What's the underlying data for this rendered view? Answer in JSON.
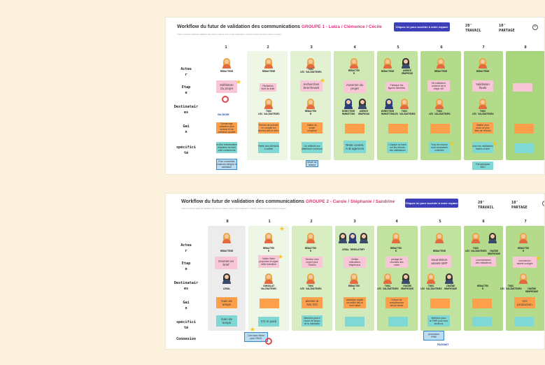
{
  "boards": [
    {
      "title": "Workflow du futur de validation des communications",
      "group": "GROUPE 1 - Luiza / Clémence / Cécile",
      "subtitle": "Créez un process global de validation des comms. Laissez court à votre imagination, n'hésitez surtout pas à les mettre en images !",
      "cta": "Cliquez ici pour accéder à votre espace",
      "meta1": "20'\nTRAVAIL",
      "meta2": "10'\nPARTAGE",
      "columns": [
        "1",
        "2",
        "3",
        "4",
        "5",
        "6",
        "7",
        "8"
      ],
      "rows": [
        "Acteu\nr",
        "Etap\ne",
        "Destinatair\nes",
        "Gai\nn",
        "spécifici\nté"
      ],
      "roles": [
        "REDACTEUR",
        "REDACTEUR",
        "TOUS\nLES VALIDATEURS",
        "REDACTEU\nR",
        "REDACTEUR",
        "AGENCE\nGRAPHIQU",
        "REDACTEUR",
        "REDACTEUR"
      ],
      "steps": [
        "Définition\ndu projet",
        "Rédaction\nécrit du brief",
        "recherches\nbenchmark",
        "Avancée du\nprojet",
        "Fabrique les\nfigures identifiés",
        "Ne validateur\ncontient de la\nétape 4/5",
        "Validation\nfinale"
      ],
      "dest_roles": [
        "VALIDCOM",
        "TOUS\nLES VALIDATEURS",
        "REDACTEU\nR",
        "DIRECTEUR\nMARKETING",
        "AGENCE\nGRAPHIQU",
        "DIRECTEUR\nMARKETING",
        "TOUS\nLES VALIDATEURS",
        "TOUS\nLES VALIDATEURS",
        "TOUS\nLES VALIDATEURS"
      ],
      "gains": [
        "Démarrage\nvalidation plus\nsereine et de\nmeilleure qualité",
        "Permet de prendre\nen compte les\nattentes dès le début",
        "Valeur du\nprojet\ncomprise",
        "",
        "",
        "",
        "Valider pour\nnous ne plus\nfaire de retours",
        ""
      ],
      "specs": [
        "Peut-être éventuellement\nrédaction du brief\ncôté commercial",
        "Partie des éléments\nà valider",
        "On réfléchit sur\nplateforme commune",
        "Tests comes,\nA-B agences",
        "L'équipe se base\nsur les retours\ndes validateurs",
        "Tous les retours\nsont centralisés\ncollectés",
        "Avec les validations\nfaciles à faire",
        ""
      ],
      "extras": [
        "Pour consolider\nplusieurs intégrer la\nvalidation",
        "Mode de\nretours",
        "Fait quelques MAJ"
      ]
    },
    {
      "title": "Workflow du futur de validation des communications",
      "group": "GROUPE 2 - Carole / Stéphanie / Sandrine",
      "subtitle": "Créez un process global de validation des comms. Laissez court à votre imagination, n'hésitez surtout pas à les mettre en images !",
      "cta": "Cliquez ici pour accéder à votre espace",
      "meta1": "20'\nTRAVAIL",
      "meta2": "10'\nPARTAGE",
      "columns": [
        "0",
        "1",
        "2",
        "3",
        "4",
        "5",
        "6",
        "7"
      ],
      "rows": [
        "Acteu\nr",
        "Etap\ne",
        "Destinatair\nes",
        "Gai\nn",
        "spécifici\nté",
        "Connexion"
      ],
      "roles": [
        "REDACTEUR",
        "REDACTEU\nR",
        "REDACTEU\nR",
        "LEGAL REGULATORY",
        "REDACTEU\nR",
        "REDACTEUR",
        "TOUS\nLES VALIDATEURS",
        "CHAÎNE\nGRAPHIQUE",
        "REDACTEU\nR"
      ],
      "steps": [
        "Soumet un\nbrief",
        "Valide l'idée\nproposée et signe\ncette transition",
        "Revient vers\nexpert pour\nObtient",
        "Vérifier\nindications\nétaplécaux",
        "partage de\nrésultats des\nvotes",
        "soumission\nassets WIP",
        "commentaires\ndes validateurs",
        "soumission\nassets corrigés"
      ],
      "dest_roles": [
        "LEGAL",
        "CONSULAT\nVALIDATEURS",
        "TOUS\nLES VALIDATEURS",
        "REDACTEU\nR",
        "TOUS\nLES VALIDATEURS",
        "CHAÎNE\nGRAPHIQUE",
        "TOUS\nLES VALIDATEURS",
        "CHAÎNE\nGRAPHIQUE",
        "REDACTEU\nR",
        "TOUS\nLES VALIDATEURS",
        "CHAÎNE\nGRAPHIQUE"
      ],
      "gains": [
        "Gain de\ntemps",
        "",
        "alertes si\nNO GO",
        "Validation légale\nrecueillie dès le\nbrief initial",
        "Evitant de\ncomplimenter\ndevoir tarder",
        "",
        "",
        "GO\nproduction"
      ],
      "specs": [
        "Gain de\ntemps",
        "CG si pack",
        "Attention peut-il\nl'avoir de temps\nde la validation",
        "",
        "",
        "Attention pour\nle PMR pour tous\nsecteurs",
        "",
        ""
      ],
      "extras": [
        "Lien avec Helm\npour PACK",
        "processus\nPRM",
        "PACKSHOT"
      ]
    }
  ],
  "colors": {
    "accent": "#e0357a",
    "cta": "#3d3fb8",
    "light_green": "#eef7e5",
    "mid_green": "#cfe8b4",
    "green": "#b3db8b",
    "orange": "#fca04c",
    "teal": "#7fd8d4",
    "pink": "#f9c6d8"
  }
}
